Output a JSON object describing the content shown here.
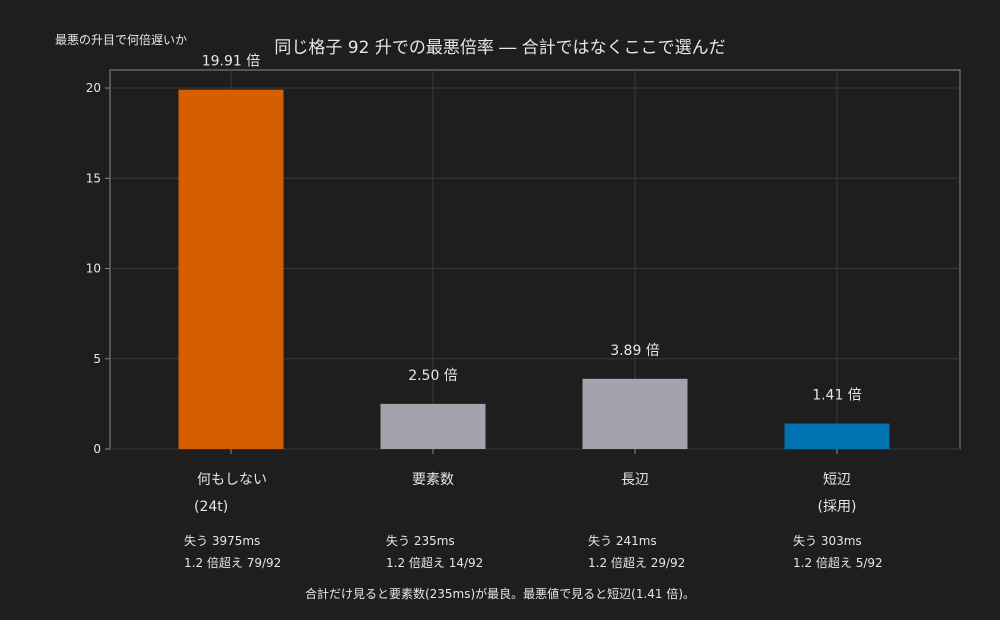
{
  "chart_data": {
    "type": "bar",
    "title": "同じ格子 92 升での最悪倍率 ― 合計ではなくここで選んだ",
    "ylabel": "最悪の升目で何倍遅いか",
    "xlabel": "",
    "ylim": [
      0,
      21
    ],
    "yticks": [
      "0",
      "5",
      "10",
      "15",
      "20"
    ],
    "grid": true,
    "categories": [
      {
        "name": "何もしない",
        "sub": "(24t)"
      },
      {
        "name": "要素数",
        "sub": ""
      },
      {
        "name": "長辺",
        "sub": ""
      },
      {
        "name": "短辺",
        "sub": "(採用)"
      }
    ],
    "values": [
      19.91,
      2.5,
      3.89,
      1.41
    ],
    "value_labels": [
      "19.91 倍",
      "2.50 倍",
      "3.89 倍",
      "1.41 倍"
    ],
    "bar_colors": [
      "#d55e00",
      "#a3a3ad",
      "#a3a3ad",
      "#0072b2"
    ],
    "annotations": [
      {
        "loss": "失う 3975ms",
        "over": "1.2 倍超え 79/92"
      },
      {
        "loss": "失う 235ms",
        "over": "1.2 倍超え 14/92"
      },
      {
        "loss": "失う 241ms",
        "over": "1.2 倍超え 29/92"
      },
      {
        "loss": "失う 303ms",
        "over": "1.2 倍超え 5/92"
      }
    ]
  },
  "footnote": "合計だけ見ると要素数(235ms)が最良。最悪値で見ると短辺(1.41 倍)。"
}
